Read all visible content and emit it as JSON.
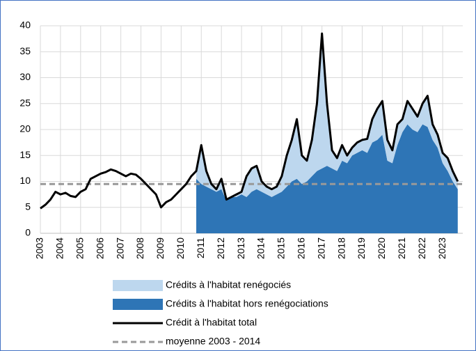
{
  "chart_data": {
    "type": "stacked-area-line",
    "categories": [
      "2003",
      null,
      null,
      null,
      "2004",
      null,
      null,
      null,
      "2005",
      null,
      null,
      null,
      "2006",
      null,
      null,
      null,
      "2007",
      null,
      null,
      null,
      "2008",
      null,
      null,
      null,
      "2009",
      null,
      null,
      null,
      "2010",
      null,
      null,
      null,
      "2011",
      null,
      null,
      null,
      "2012",
      null,
      null,
      null,
      "2013",
      null,
      null,
      null,
      "2014",
      null,
      null,
      null,
      "2015",
      null,
      null,
      null,
      "2016",
      null,
      null,
      null,
      "2017",
      null,
      null,
      null,
      "2018",
      null,
      null,
      null,
      "2019",
      null,
      null,
      null,
      "2020",
      null,
      null,
      null,
      "2021",
      null,
      null,
      null,
      "2022",
      null,
      null,
      null,
      "2023",
      null,
      null,
      null
    ],
    "series": [
      {
        "name": "Crédits à l'habitat renégociés",
        "kind": "area",
        "stack": 1,
        "color": "#bdd7ee",
        "values": [
          null,
          null,
          null,
          null,
          null,
          null,
          null,
          null,
          null,
          null,
          null,
          null,
          null,
          null,
          null,
          null,
          null,
          null,
          null,
          null,
          null,
          null,
          null,
          null,
          null,
          null,
          null,
          null,
          null,
          null,
          null,
          1.5,
          7.5,
          3,
          1,
          0.5,
          2,
          0.2,
          0,
          0.5,
          0.5,
          4,
          4.5,
          4.5,
          2,
          1.5,
          1.5,
          1.5,
          3,
          6,
          8,
          11.5,
          5.5,
          4,
          7,
          13,
          26,
          12,
          3.5,
          2.5,
          3,
          1.5,
          1.5,
          2,
          2,
          2.7,
          4.5,
          6,
          6.5,
          4,
          2.5,
          4,
          2.5,
          4.5,
          4,
          3,
          4,
          6,
          3,
          2.5,
          2,
          2.5,
          2,
          1.5
        ]
      },
      {
        "name": "Crédits à l'habitat hors renégociations",
        "kind": "area",
        "stack": 0,
        "color": "#2e75b6",
        "values": [
          null,
          null,
          null,
          null,
          null,
          null,
          null,
          null,
          null,
          null,
          null,
          null,
          null,
          null,
          null,
          null,
          null,
          null,
          null,
          null,
          null,
          null,
          null,
          null,
          null,
          null,
          null,
          null,
          null,
          null,
          null,
          10.5,
          9.5,
          9,
          8.5,
          8,
          8.5,
          6.3,
          7,
          7,
          7.5,
          7,
          8,
          8.5,
          8,
          7.5,
          7,
          7.5,
          8,
          9,
          10,
          10.5,
          9.5,
          10,
          11,
          12,
          12.5,
          13,
          12.5,
          12,
          14,
          13.5,
          15,
          15.5,
          16,
          15.5,
          17.5,
          18,
          19,
          14,
          13.5,
          17,
          19.5,
          21,
          20,
          19.5,
          21,
          20.5,
          18,
          16.5,
          13.5,
          12,
          10,
          8.5
        ]
      },
      {
        "name": "Crédit à l'habitat total",
        "kind": "line",
        "color": "#000000",
        "values": [
          4.8,
          5.5,
          6.5,
          8,
          7.5,
          7.8,
          7.2,
          7,
          8,
          8.5,
          10.5,
          11,
          11.5,
          11.8,
          12.3,
          12,
          11.5,
          11,
          11.5,
          11.3,
          10.5,
          9.5,
          8.5,
          7.5,
          5,
          6,
          6.5,
          7.5,
          8.5,
          9.5,
          11,
          12,
          17,
          12,
          9.5,
          8.5,
          10.5,
          6.5,
          7,
          7.5,
          8,
          11,
          12.5,
          13,
          10,
          9,
          8.5,
          9,
          11,
          15,
          18,
          22,
          15,
          14,
          18,
          25,
          38.5,
          25,
          16,
          14.5,
          17,
          15,
          16.5,
          17.5,
          18,
          18.2,
          22,
          24,
          25.5,
          18,
          16,
          21,
          22,
          25.5,
          24,
          22.5,
          25,
          26.5,
          21,
          19,
          15.5,
          14.5,
          12,
          10
        ]
      }
    ],
    "reference_line": {
      "name": "moyenne 2003 - 2014",
      "value": 9.5,
      "color": "#999999"
    },
    "ylim": [
      0,
      40
    ],
    "yticks": [
      0,
      5,
      10,
      15,
      20,
      25,
      30,
      35,
      40
    ],
    "grid": true
  }
}
